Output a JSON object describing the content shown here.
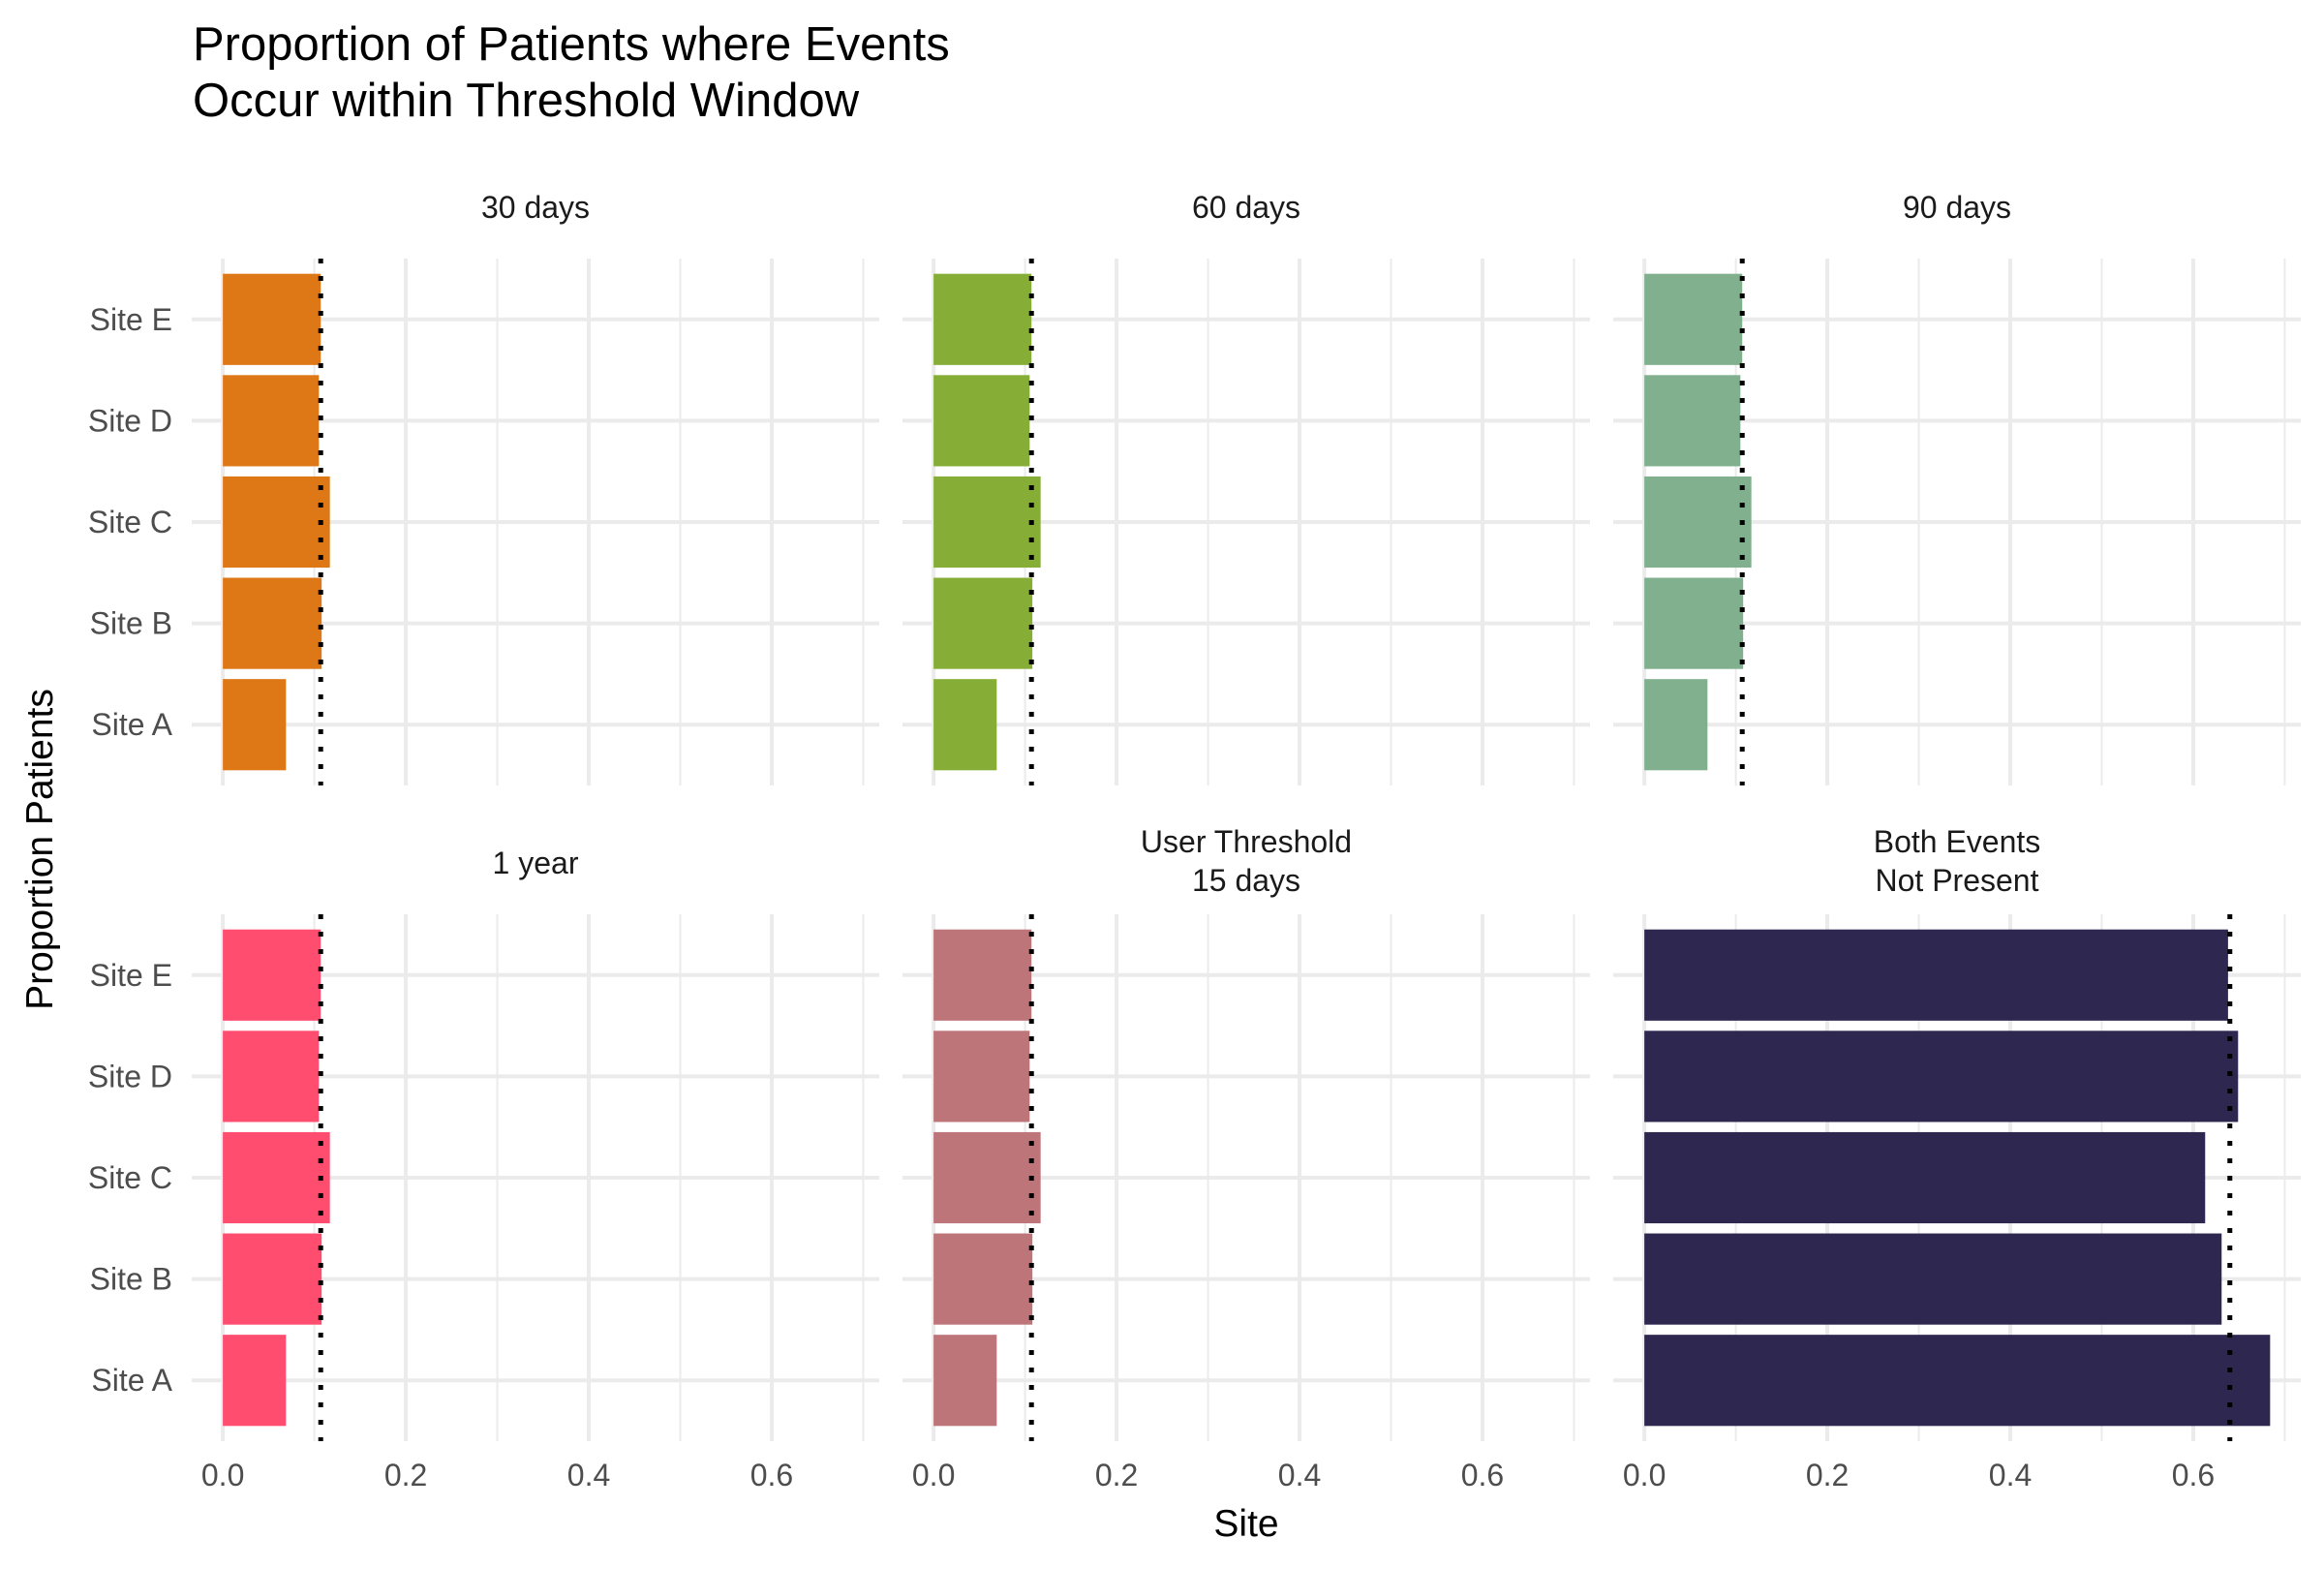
{
  "chart_data": {
    "type": "bar",
    "orientation": "horizontal",
    "title": [
      "Proportion of Patients where Events",
      "Occur within Threshold Window"
    ],
    "xlabel": "Site",
    "ylabel": "Proportion Patients",
    "categories": [
      "Site A",
      "Site B",
      "Site C",
      "Site D",
      "Site E"
    ],
    "xlim": [
      -0.034,
      0.7175
    ],
    "x_ticks": [
      0.0,
      0.2,
      0.4,
      0.6
    ],
    "x_tick_labels": [
      "0.0",
      "0.2",
      "0.4",
      "0.6"
    ],
    "x_minor_ticks": [
      0.1,
      0.3,
      0.5,
      0.7
    ],
    "grid": true,
    "legend": "none",
    "panels": [
      {
        "label": [
          "30 days"
        ],
        "color": "#DE7716",
        "values": [
          0.069,
          0.108,
          0.117,
          0.105,
          0.107
        ],
        "threshold": 0.107
      },
      {
        "label": [
          "60 days"
        ],
        "color": "#86AE36",
        "values": [
          0.069,
          0.108,
          0.117,
          0.105,
          0.107
        ],
        "threshold": 0.107
      },
      {
        "label": [
          "90 days"
        ],
        "color": "#80B08E",
        "values": [
          0.069,
          0.108,
          0.117,
          0.105,
          0.107
        ],
        "threshold": 0.107
      },
      {
        "label": [
          "1 year"
        ],
        "color": "#FF4D6F",
        "values": [
          0.069,
          0.108,
          0.117,
          0.105,
          0.107
        ],
        "threshold": 0.107
      },
      {
        "label": [
          "User Threshold",
          "15 days"
        ],
        "color": "#BD7579",
        "values": [
          0.069,
          0.108,
          0.117,
          0.105,
          0.107
        ],
        "threshold": 0.107
      },
      {
        "label": [
          "Both Events",
          "Not Present"
        ],
        "color": "#2E2850",
        "values": [
          0.684,
          0.631,
          0.613,
          0.649,
          0.638
        ],
        "threshold": 0.64
      }
    ]
  },
  "colors": {
    "grid": "#EBEBEB",
    "threshold_line": "#000000"
  }
}
